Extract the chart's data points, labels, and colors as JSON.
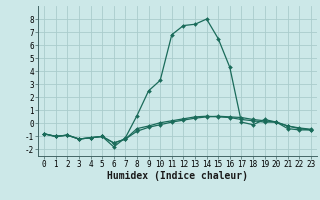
{
  "xlabel": "Humidex (Indice chaleur)",
  "x_values": [
    0,
    1,
    2,
    3,
    4,
    5,
    6,
    7,
    8,
    9,
    10,
    11,
    12,
    13,
    14,
    15,
    16,
    17,
    18,
    19,
    20,
    21,
    22,
    23
  ],
  "line1_y": [
    -0.8,
    -1.0,
    -0.9,
    -1.2,
    -1.1,
    -1.0,
    -1.5,
    -1.2,
    -0.6,
    -0.3,
    -0.1,
    0.1,
    0.25,
    0.4,
    0.5,
    0.55,
    0.5,
    0.45,
    0.3,
    0.2,
    0.1,
    -0.2,
    -0.4,
    -0.5
  ],
  "line2_y": [
    -0.8,
    -1.0,
    -0.9,
    -1.2,
    -1.1,
    -1.0,
    -1.8,
    -1.1,
    0.6,
    2.5,
    3.3,
    6.8,
    7.5,
    7.6,
    8.0,
    6.5,
    4.3,
    0.1,
    -0.1,
    0.3,
    0.1,
    -0.4,
    -0.5,
    -0.5
  ],
  "line3_y": [
    -0.8,
    -1.0,
    -0.9,
    -1.2,
    -1.1,
    -1.0,
    -1.5,
    -1.2,
    -0.4,
    -0.2,
    0.05,
    0.2,
    0.35,
    0.5,
    0.55,
    0.5,
    0.45,
    0.3,
    0.2,
    0.1,
    0.1,
    -0.2,
    -0.35,
    -0.45
  ],
  "bg_color": "#cce8e8",
  "grid_color": "#aacccc",
  "line_color": "#1a6b5a",
  "ylim": [
    -2.5,
    9.0
  ],
  "xlim": [
    -0.5,
    23.5
  ],
  "yticks": [
    -2,
    -1,
    0,
    1,
    2,
    3,
    4,
    5,
    6,
    7,
    8
  ],
  "xticks": [
    0,
    1,
    2,
    3,
    4,
    5,
    6,
    7,
    8,
    9,
    10,
    11,
    12,
    13,
    14,
    15,
    16,
    17,
    18,
    19,
    20,
    21,
    22,
    23
  ],
  "tick_fontsize": 5.5,
  "xlabel_fontsize": 7.0,
  "markersize": 2.0,
  "linewidth": 0.9
}
